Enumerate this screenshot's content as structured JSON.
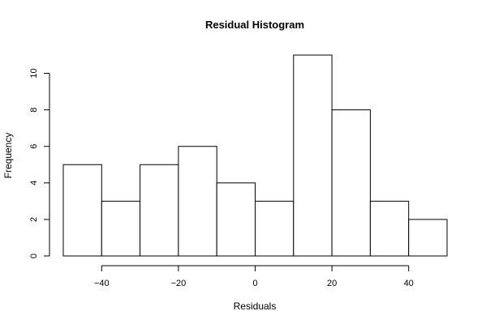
{
  "chart_data": {
    "type": "bar",
    "title": "Residual Histogram",
    "xlabel": "Residuals",
    "ylabel": "Frequency",
    "bins": [
      {
        "from": -50,
        "to": -40,
        "count": 5
      },
      {
        "from": -40,
        "to": -30,
        "count": 3
      },
      {
        "from": -30,
        "to": -20,
        "count": 5
      },
      {
        "from": -20,
        "to": -10,
        "count": 6
      },
      {
        "from": -10,
        "to": 0,
        "count": 4
      },
      {
        "from": 0,
        "to": 10,
        "count": 3
      },
      {
        "from": 10,
        "to": 20,
        "count": 11
      },
      {
        "from": 20,
        "to": 30,
        "count": 8
      },
      {
        "from": 30,
        "to": 40,
        "count": 3
      },
      {
        "from": 40,
        "to": 50,
        "count": 2
      }
    ],
    "xlim": [
      -50,
      50
    ],
    "ylim": [
      0,
      11
    ],
    "xticks": [
      -40,
      -20,
      0,
      20,
      40
    ],
    "xtick_labels": [
      "−40",
      "−20",
      "0",
      "20",
      "40"
    ],
    "yticks": [
      0,
      2,
      4,
      6,
      8,
      10
    ],
    "ytick_labels": [
      "0",
      "2",
      "4",
      "6",
      "8",
      "10"
    ],
    "grid": false,
    "legend": "none"
  }
}
